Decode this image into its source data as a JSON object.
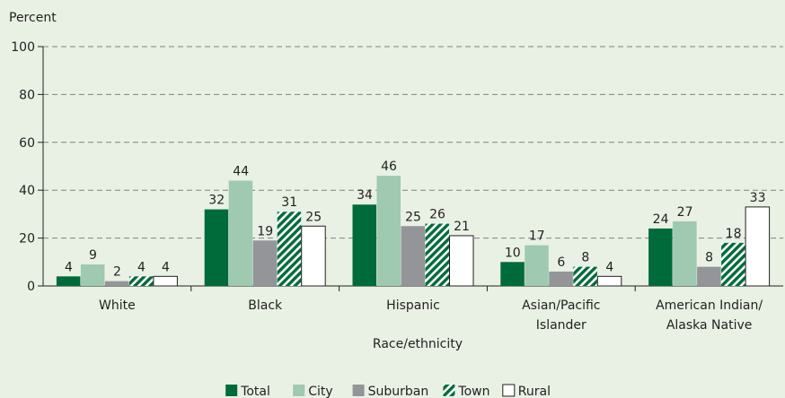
{
  "chart_data": {
    "type": "bar",
    "ylabel": "Percent",
    "xlabel": "Race/ethnicity",
    "ylim": [
      0,
      100
    ],
    "yticks": [
      0,
      20,
      40,
      60,
      80,
      100
    ],
    "grid": true,
    "legend_position": "bottom",
    "categories": [
      [
        "White"
      ],
      [
        "Black"
      ],
      [
        "Hispanic"
      ],
      [
        "Asian/Pacific",
        "Islander"
      ],
      [
        "American Indian/",
        "Alaska Native"
      ]
    ],
    "series": [
      {
        "name": "Total",
        "values": [
          4,
          32,
          34,
          10,
          24
        ],
        "color": "#006b3a",
        "pattern": "solid"
      },
      {
        "name": "City",
        "values": [
          9,
          44,
          46,
          17,
          27
        ],
        "color": "#9fc9b0",
        "pattern": "solid"
      },
      {
        "name": "Suburban",
        "values": [
          2,
          19,
          25,
          6,
          8
        ],
        "color": "#939598",
        "pattern": "solid"
      },
      {
        "name": "Town",
        "values": [
          4,
          31,
          26,
          8,
          18
        ],
        "color": "#006b3a",
        "pattern": "hatch"
      },
      {
        "name": "Rural",
        "values": [
          4,
          25,
          21,
          4,
          33
        ],
        "color": "#ffffff",
        "pattern": "outline"
      }
    ]
  }
}
